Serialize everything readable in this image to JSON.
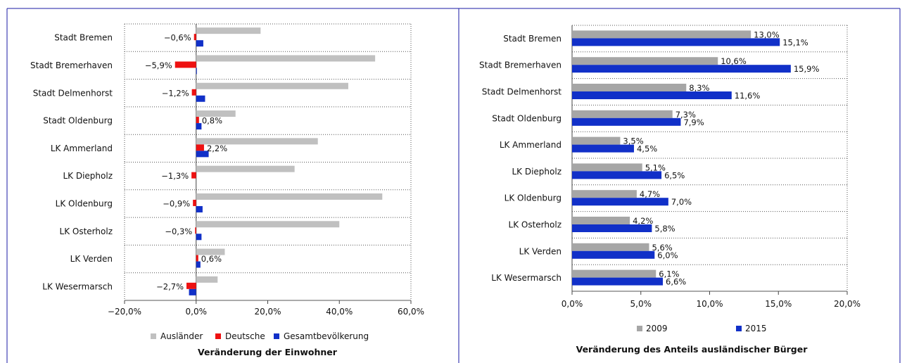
{
  "colors": {
    "auslaender": "#c0c0c0",
    "deutsche": "#ee1111",
    "gesamt": "#1130c8",
    "y2009": "#a6a6a6",
    "y2015": "#1130c8",
    "frame": "#1a1aa6"
  },
  "chart_data": [
    {
      "type": "bar",
      "orientation": "horizontal",
      "title": "Veränderung der Einwohner",
      "categories": [
        "Stadt Bremen",
        "Stadt Bremerhaven",
        "Stadt Delmenhorst",
        "Stadt Oldenburg",
        "LK Ammerland",
        "LK Diepholz",
        "LK Oldenburg",
        "LK Osterholz",
        "LK Verden",
        "LK Wesermarsch"
      ],
      "series": [
        {
          "name": "Ausländer",
          "values": [
            18.0,
            50.0,
            42.5,
            11.0,
            34.0,
            27.5,
            52.0,
            40.0,
            8.0,
            6.0
          ]
        },
        {
          "name": "Deutsche",
          "values": [
            -0.6,
            -5.9,
            -1.2,
            0.8,
            2.2,
            -1.3,
            -0.9,
            -0.3,
            0.6,
            -2.7
          ]
        },
        {
          "name": "Gesamtbevölkerung",
          "values": [
            2.0,
            0.2,
            2.5,
            1.5,
            3.5,
            0.0,
            1.8,
            1.5,
            1.2,
            -2.0
          ]
        }
      ],
      "data_labels": [
        "−0,6%",
        "−5,9%",
        "−1,2%",
        "0,8%",
        "2,2%",
        "−1,3%",
        "−0,9%",
        "−0,3%",
        "0,6%",
        "−2,7%"
      ],
      "xlim": [
        -20,
        60
      ],
      "xticks": [
        -20,
        0,
        20,
        40,
        60
      ],
      "xtick_labels": [
        "−20,0%",
        "0,0%",
        "20,0%",
        "40,0%",
        "60,0%"
      ],
      "grid": "horizontal dotted row separators",
      "legend": "bottom"
    },
    {
      "type": "bar",
      "orientation": "horizontal",
      "title": "Veränderung des Anteils ausländischer Bürger",
      "categories": [
        "Stadt Bremen",
        "Stadt Bremerhaven",
        "Stadt Delmenhorst",
        "Stadt Oldenburg",
        "LK Ammerland",
        "LK Diepholz",
        "LK Oldenburg",
        "LK Osterholz",
        "LK Verden",
        "LK Wesermarsch"
      ],
      "series": [
        {
          "name": "2009",
          "values": [
            13.0,
            10.6,
            8.3,
            7.3,
            3.5,
            5.1,
            4.7,
            4.2,
            5.6,
            6.1
          ],
          "labels": [
            "13,0%",
            "10,6%",
            "8,3%",
            "7,3%",
            "3,5%",
            "5,1%",
            "4,7%",
            "4,2%",
            "5,6%",
            "6,1%"
          ]
        },
        {
          "name": "2015",
          "values": [
            15.1,
            15.9,
            11.6,
            7.9,
            4.5,
            6.5,
            7.0,
            5.8,
            6.0,
            6.6
          ],
          "labels": [
            "15,1%",
            "15,9%",
            "11,6%",
            "7,9%",
            "4,5%",
            "6,5%",
            "7,0%",
            "5,8%",
            "6,0%",
            "6,6%"
          ]
        }
      ],
      "xlim": [
        0,
        20
      ],
      "xticks": [
        0,
        5,
        10,
        15,
        20
      ],
      "xtick_labels": [
        "0,0%",
        "5,0%",
        "10,0%",
        "15,0%",
        "20,0%"
      ],
      "grid": "horizontal dotted row separators",
      "legend": "bottom"
    }
  ]
}
